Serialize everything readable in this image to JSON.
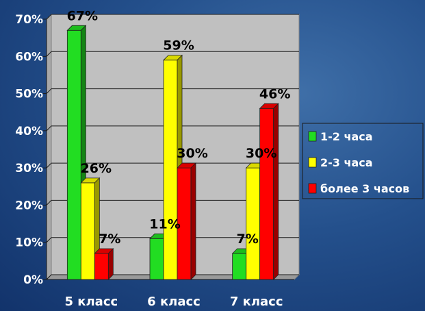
{
  "chart_data": {
    "type": "bar",
    "categories": [
      "5 класс",
      "6 класс",
      "7 класс"
    ],
    "series": [
      {
        "name": "1-2 часа",
        "values": [
          67,
          11,
          7
        ],
        "color": "#22dd22"
      },
      {
        "name": "2-3 часа",
        "values": [
          26,
          59,
          30
        ],
        "color": "#ffff00"
      },
      {
        "name": "более 3 часов",
        "values": [
          7,
          30,
          46
        ],
        "color": "#ff0000"
      }
    ],
    "data_labels": [
      [
        "67%",
        "26%",
        "7%"
      ],
      [
        "11%",
        "59%",
        "30%"
      ],
      [
        "7%",
        "30%",
        "46%"
      ]
    ],
    "yticks": [
      "0%",
      "10%",
      "20%",
      "30%",
      "40%",
      "50%",
      "60%",
      "70%"
    ],
    "ylim": [
      0,
      70
    ],
    "grid": true,
    "legend": "right",
    "title": "",
    "xlabel": "",
    "ylabel": ""
  }
}
